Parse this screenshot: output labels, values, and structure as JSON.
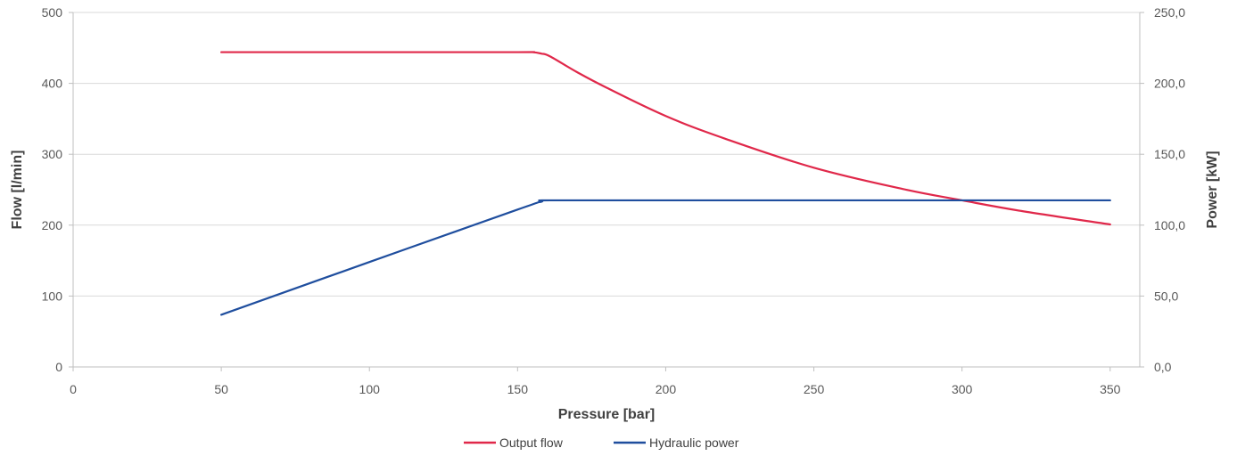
{
  "chart_data": {
    "type": "line",
    "xlabel": "Pressure [bar]",
    "ylabel_left": "Flow [l/min]",
    "ylabel_right": "Power [kW]",
    "xlim": [
      0,
      360
    ],
    "ylim_left": [
      0,
      500
    ],
    "ylim_right": [
      0,
      250
    ],
    "x_ticks": [
      0,
      50,
      100,
      150,
      200,
      250,
      300,
      350
    ],
    "x_tick_labels": [
      "0",
      "50",
      "100",
      "150",
      "200",
      "250",
      "300",
      "350"
    ],
    "y_left_ticks": [
      0,
      100,
      200,
      300,
      400,
      500
    ],
    "y_left_tick_labels": [
      "0",
      "100",
      "200",
      "300",
      "400",
      "500"
    ],
    "y_right_ticks": [
      0,
      50,
      100,
      150,
      200,
      250
    ],
    "y_right_tick_labels": [
      "0,0",
      "50,0",
      "100,0",
      "150,0",
      "200,0",
      "250,0"
    ],
    "grid": "horizontal",
    "legend_position": "bottom",
    "series": [
      {
        "name": "Output flow",
        "axis": "left",
        "color": "#e0284a",
        "x": [
          50,
          100,
          150,
          155,
          158,
          161,
          170,
          180,
          200,
          220,
          250,
          280,
          300,
          320,
          350
        ],
        "y": [
          444,
          444,
          444,
          444,
          442,
          438,
          416,
          394,
          354,
          322,
          281,
          251,
          235,
          220,
          201
        ]
      },
      {
        "name": "Hydraulic power",
        "axis": "right",
        "color": "#1f4e9e",
        "x": [
          50,
          100,
          150,
          158,
          161,
          200,
          250,
          300,
          350
        ],
        "y": [
          36.8,
          74,
          111,
          116.5,
          117.5,
          117.5,
          117.5,
          117.5,
          117.5
        ]
      }
    ]
  }
}
